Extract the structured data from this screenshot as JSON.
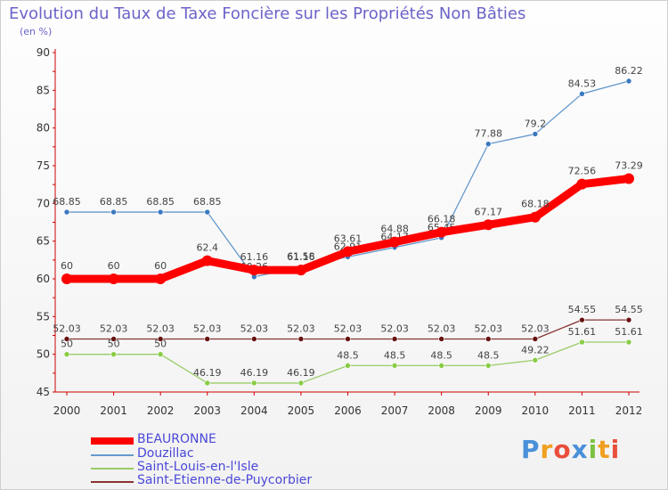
{
  "title": "Evolution du Taux de Taxe Foncière sur les Propriétés Non Bâties",
  "unit_label": "(en %)",
  "logo_text": "Proxiti",
  "chart_data": {
    "type": "line",
    "categories": [
      "2000",
      "2001",
      "2002",
      "2003",
      "2004",
      "2005",
      "2006",
      "2007",
      "2008",
      "2009",
      "2010",
      "2011",
      "2012"
    ],
    "ylim": [
      45,
      90
    ],
    "yticks": [
      45,
      50,
      55,
      60,
      65,
      70,
      75,
      80,
      85,
      90
    ],
    "grid": false,
    "legend_position": "bottom-left",
    "series": [
      {
        "name": "Douzillac",
        "color": "#6699cc",
        "marker": "#3a78c0",
        "values": [
          68.85,
          68.85,
          68.85,
          68.85,
          60.26,
          61.58,
          62.91,
          64.17,
          65.45,
          77.88,
          79.2,
          84.53,
          86.22
        ],
        "labels": [
          "68.85",
          "68.85",
          "68.85",
          "68.85",
          "60.26",
          "61.58",
          "62.91",
          "64.17",
          "65.45",
          "77.88",
          "79.2",
          "84.53",
          "86.22"
        ]
      },
      {
        "name": "Saint-Louis-en-l'Isle",
        "color": "#99cc66",
        "marker": "#88cc44",
        "values": [
          50,
          50,
          50,
          46.19,
          46.19,
          46.19,
          48.5,
          48.5,
          48.5,
          48.5,
          49.22,
          51.61,
          51.61
        ],
        "labels": [
          "50",
          "50",
          "50",
          "46.19",
          "46.19",
          "46.19",
          "48.5",
          "48.5",
          "48.5",
          "48.5",
          "49.22",
          "51.61",
          "51.61"
        ]
      },
      {
        "name": "Saint-Etienne-de-Puycorbier",
        "color": "#883333",
        "marker": "#661111",
        "values": [
          52.03,
          52.03,
          52.03,
          52.03,
          52.03,
          52.03,
          52.03,
          52.03,
          52.03,
          52.03,
          52.03,
          54.55,
          54.55
        ],
        "labels": [
          "52.03",
          "52.03",
          "52.03",
          "52.03",
          "52.03",
          "52.03",
          "52.03",
          "52.03",
          "52.03",
          "52.03",
          "52.03",
          "54.55",
          "54.55"
        ]
      },
      {
        "name": "BEAURONNE",
        "color": "#ff0000",
        "marker": "#ff0000",
        "thick": true,
        "values": [
          60,
          60,
          60,
          62.4,
          61.16,
          61.16,
          63.61,
          64.88,
          66.18,
          67.17,
          68.18,
          72.56,
          73.29
        ],
        "labels": [
          "60",
          "60",
          "60",
          "62.4",
          "61.16",
          "61.16",
          "63.61",
          "64.88",
          "66.18",
          "67.17",
          "68.18",
          "72.56",
          "73.29"
        ]
      }
    ]
  },
  "legend": [
    {
      "name": "BEAURONNE",
      "color": "#ff0000",
      "thick": true
    },
    {
      "name": "Douzillac",
      "color": "#6699cc",
      "thick": false
    },
    {
      "name": "Saint-Louis-en-l'Isle",
      "color": "#99cc66",
      "thick": false
    },
    {
      "name": "Saint-Etienne-de-Puycorbier",
      "color": "#883333",
      "thick": false
    }
  ]
}
